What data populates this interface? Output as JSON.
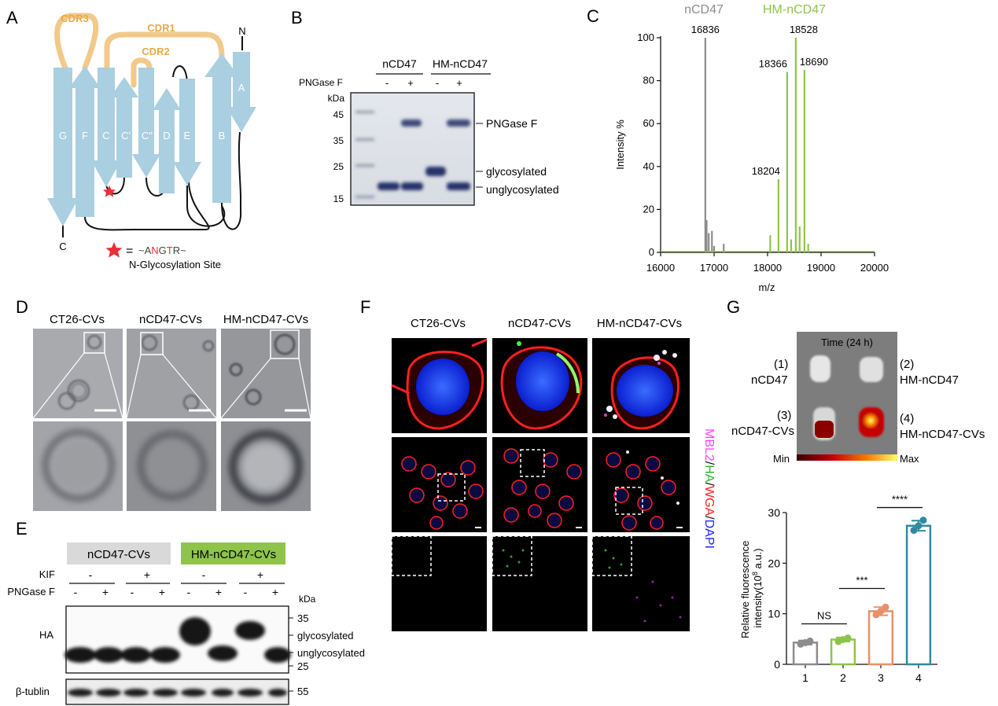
{
  "panels": {
    "A": {
      "letter": "A",
      "cdr": [
        "CDR3",
        "CDR1",
        "CDR2"
      ],
      "strands": [
        "G",
        "F",
        "C",
        "C'",
        "C''",
        "D",
        "E",
        "B",
        "A"
      ],
      "n_label": "N",
      "c_label": "C",
      "legend_eq": "=",
      "legend_seq": [
        "~A",
        "N",
        "G",
        "T",
        "R~"
      ],
      "legend_site": "N-Glycosylation Site",
      "colors": {
        "strand": "#a9cfe0",
        "cdr": "#f2c98a",
        "cdr_text": "#e8a84a",
        "star": "#e8303a"
      }
    },
    "B": {
      "letter": "B",
      "groups": [
        "nCD47",
        "HM-nCD47"
      ],
      "row_label": "PNGase F",
      "lane_signs": [
        "-",
        "+",
        "-",
        "+"
      ],
      "unit": "kDa",
      "markers": [
        "45",
        "35",
        "25",
        "15"
      ],
      "band_labels": [
        "PNGase F",
        "glycosylated",
        "unglycosylated"
      ]
    },
    "C": {
      "letter": "C",
      "legend": [
        "nCD47",
        "HM-nCD47"
      ],
      "chart_data": {
        "type": "line",
        "xlabel": "m/z",
        "ylabel": "Intensity %",
        "xlim": [
          16000,
          20000
        ],
        "ylim": [
          0,
          100
        ],
        "xticks": [
          16000,
          17000,
          18000,
          19000,
          20000
        ],
        "yticks": [
          0,
          20,
          40,
          60,
          80,
          100
        ],
        "series": [
          {
            "name": "nCD47",
            "color": "#8c8c8c",
            "peaks": [
              [
                16836,
                100
              ],
              [
                16860,
                15
              ],
              [
                16900,
                9
              ],
              [
                16960,
                10
              ],
              [
                17000,
                3
              ],
              [
                17180,
                4
              ]
            ]
          },
          {
            "name": "HM-nCD47",
            "color": "#8ec44a",
            "peaks": [
              [
                18204,
                34
              ],
              [
                18366,
                84
              ],
              [
                18528,
                100
              ],
              [
                18690,
                85
              ],
              [
                18050,
                8
              ],
              [
                18440,
                6
              ],
              [
                18600,
                12
              ],
              [
                18760,
                4
              ]
            ]
          }
        ],
        "annotations": [
          "16836",
          "18528",
          "18366",
          "18690",
          "18204"
        ]
      }
    },
    "D": {
      "letter": "D",
      "columns": [
        "CT26-CVs",
        "nCD47-CVs",
        "HM-nCD47-CVs"
      ]
    },
    "E": {
      "letter": "E",
      "groups": [
        "nCD47-CVs",
        "HM-nCD47-CVs"
      ],
      "group_colors": [
        "#d9d9d9",
        "#8ec44a"
      ],
      "rows": [
        "KIF",
        "PNGase F"
      ],
      "kif_signs": [
        "-",
        "+",
        "-",
        "+"
      ],
      "png_signs": [
        "-",
        "+",
        "-",
        "+",
        "-",
        "+",
        "-",
        "+"
      ],
      "unit": "kDa",
      "markers": [
        "35",
        "25",
        "55"
      ],
      "band_labels": [
        "glycosylated",
        "unglycosylated"
      ],
      "blots": [
        "HA",
        "β-tublin"
      ]
    },
    "F": {
      "letter": "F",
      "columns": [
        "CT26-CVs",
        "nCD47-CVs",
        "HM-nCD47-CVs"
      ],
      "stain": [
        "MBL2",
        "/",
        "HA",
        "/",
        "WGA",
        "/",
        "DAPI"
      ]
    },
    "G": {
      "letter": "G",
      "image_title": "Time (24 h)",
      "labels": [
        {
          "num": "(1)",
          "name": "nCD47"
        },
        {
          "num": "(2)",
          "name": "HM-nCD47"
        },
        {
          "num": "(3)",
          "name": "nCD47-CVs"
        },
        {
          "num": "(4)",
          "name": "HM-nCD47-CVs"
        }
      ],
      "scale": [
        "Min",
        "Max"
      ],
      "chart_data": {
        "type": "bar",
        "categories": [
          "1",
          "2",
          "3",
          "4"
        ],
        "values": [
          4.3,
          4.9,
          10.5,
          27.4
        ],
        "points": [
          [
            4.0,
            4.3,
            4.6
          ],
          [
            4.5,
            4.9,
            5.2
          ],
          [
            9.8,
            10.5,
            11.3
          ],
          [
            26.5,
            27.4,
            28.5
          ]
        ],
        "errors": [
          0.4,
          0.4,
          0.8,
          1.0
        ],
        "colors": [
          "#8c8c8c",
          "#8ec44a",
          "#e8906a",
          "#2f8aa0"
        ],
        "ylabel_lines": [
          "Relative fluorescence",
          "intensity(10",
          "8",
          " a.u.)"
        ],
        "ylim": [
          0,
          30
        ],
        "yticks": [
          0,
          10,
          20,
          30
        ],
        "significance": [
          "NS",
          "***",
          "****"
        ]
      }
    }
  }
}
